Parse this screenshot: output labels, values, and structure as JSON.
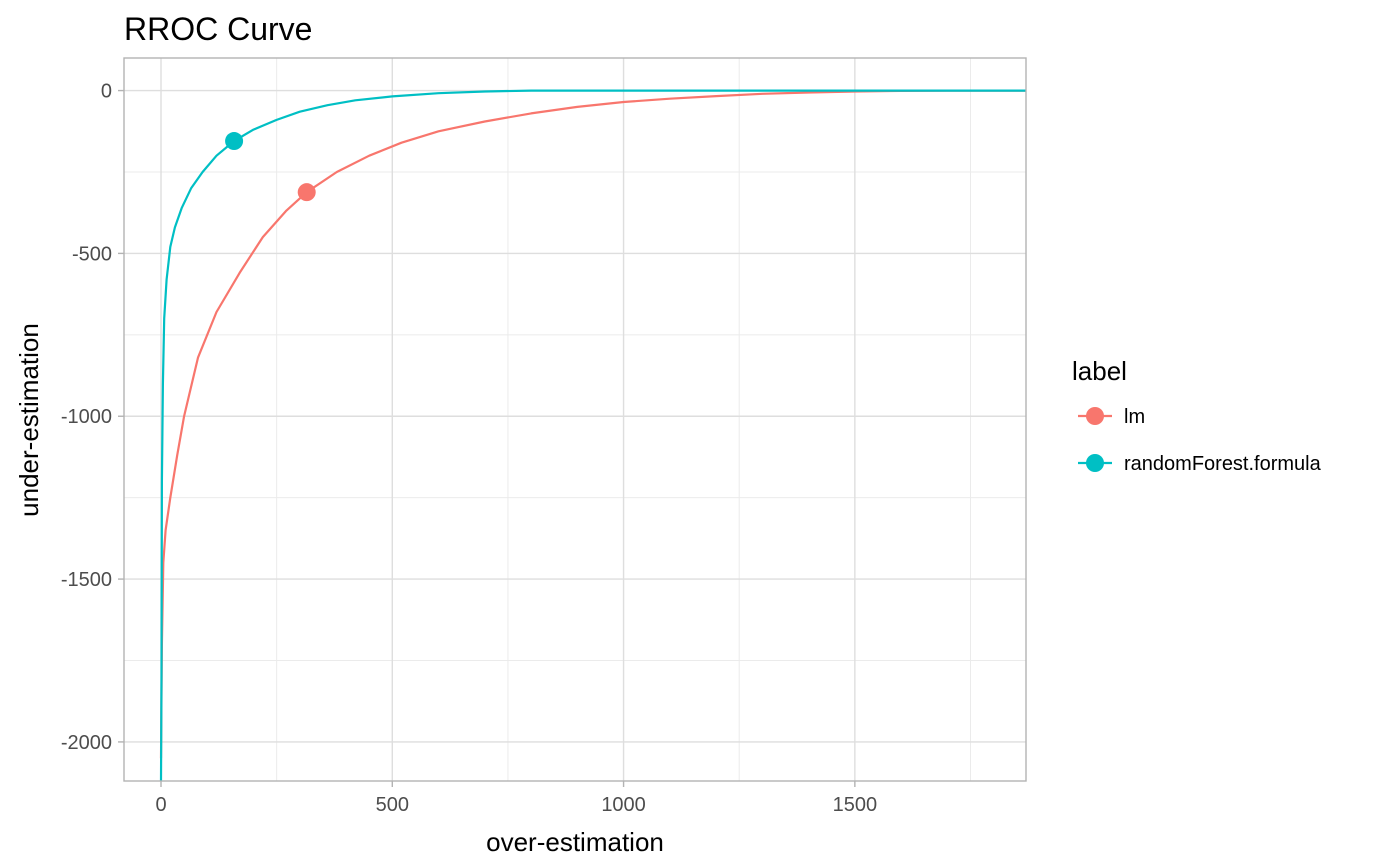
{
  "chart_data": {
    "type": "line",
    "title": "RROC Curve",
    "xlabel": "over-estimation",
    "ylabel": "under-estimation",
    "xlim": [
      -80,
      1870
    ],
    "ylim": [
      -2120,
      100
    ],
    "x_ticks": [
      0,
      500,
      1000,
      1500
    ],
    "y_ticks": [
      0,
      -500,
      -1000,
      -1500,
      -2000
    ],
    "grid": true,
    "legend": {
      "title": "label",
      "position": "right"
    },
    "series": [
      {
        "name": "lm",
        "color": "#F8766D",
        "x": [
          0,
          2,
          5,
          10,
          20,
          35,
          50,
          80,
          120,
          170,
          220,
          270,
          315,
          380,
          450,
          520,
          600,
          700,
          800,
          900,
          1000,
          1100,
          1200,
          1300,
          1400,
          1500,
          1600,
          1700,
          1870
        ],
        "y": [
          -2050,
          -1700,
          -1450,
          -1350,
          -1250,
          -1120,
          -1000,
          -820,
          -680,
          -560,
          -450,
          -370,
          -312,
          -250,
          -200,
          -160,
          -125,
          -95,
          -70,
          -50,
          -35,
          -25,
          -17,
          -10,
          -6,
          -3,
          -1,
          0,
          0
        ],
        "point": {
          "x": 315,
          "y": -312
        }
      },
      {
        "name": "randomForest.formula",
        "color": "#00BFC4",
        "x": [
          0,
          1,
          2,
          4,
          7,
          12,
          20,
          30,
          45,
          65,
          90,
          120,
          158,
          200,
          250,
          300,
          360,
          420,
          500,
          600,
          700,
          800,
          900,
          1000,
          1200,
          1500,
          1870
        ],
        "y": [
          -2120,
          -1800,
          -1200,
          -900,
          -700,
          -580,
          -480,
          -420,
          -360,
          -300,
          -250,
          -200,
          -155,
          -120,
          -90,
          -65,
          -45,
          -30,
          -18,
          -8,
          -3,
          0,
          0,
          0,
          0,
          0,
          0
        ],
        "point": {
          "x": 158,
          "y": -155
        }
      }
    ]
  }
}
